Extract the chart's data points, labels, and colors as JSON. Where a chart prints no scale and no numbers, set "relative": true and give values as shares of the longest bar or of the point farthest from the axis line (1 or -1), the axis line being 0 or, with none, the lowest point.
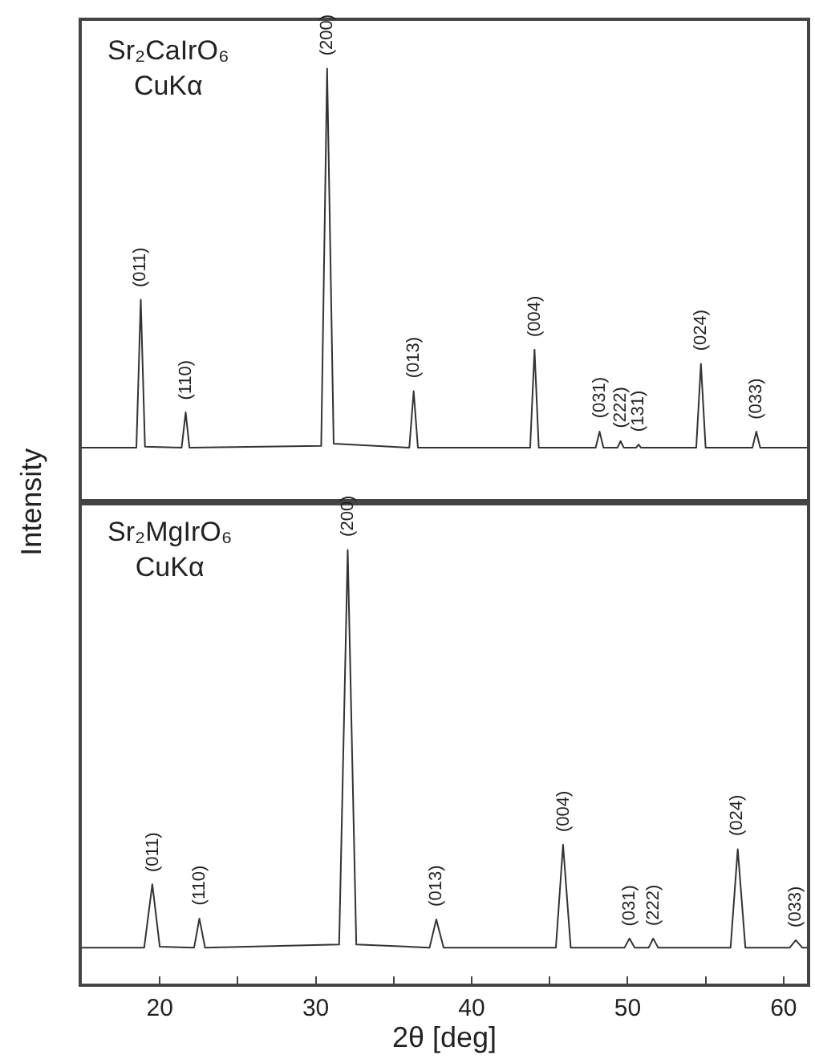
{
  "chart_data": [
    {
      "type": "line",
      "relative": true,
      "color": "#333333",
      "xlim": [
        15,
        61.5
      ],
      "tick_labels": false,
      "x": [
        15,
        18.5,
        18.78,
        19.05,
        21.4,
        21.66,
        21.9,
        30.35,
        30.73,
        31.15,
        36.0,
        36.28,
        36.55,
        43.75,
        44.03,
        44.3,
        47.95,
        48.2,
        48.45,
        49.35,
        49.55,
        49.75,
        50.55,
        50.7,
        50.85,
        54.4,
        54.7,
        55.0,
        58.0,
        58.25,
        58.5,
        61.5
      ],
      "values": [
        0.126,
        0.126,
        0.467,
        0.128,
        0.126,
        0.207,
        0.126,
        0.13,
        1,
        0.135,
        0.126,
        0.256,
        0.126,
        0.126,
        0.352,
        0.126,
        0.126,
        0.163,
        0.126,
        0.126,
        0.141,
        0.126,
        0.126,
        0.133,
        0.126,
        0.126,
        0.319,
        0.126,
        0.126,
        0.163,
        0.126,
        0.126
      ],
      "ylabel": "Intensity",
      "annotations": [
        "Sr₂CaIrO₆\nCuKα",
        {
          "text": "(011)",
          "x": 18.78,
          "y": 0.467
        },
        {
          "text": "(110)",
          "x": 21.66,
          "y": 0.207
        },
        {
          "text": "(200)",
          "x": 30.73,
          "y": 1
        },
        {
          "text": "(013)",
          "x": 36.28,
          "y": 0.256
        },
        {
          "text": "(004)",
          "x": 44.03,
          "y": 0.352
        },
        {
          "text": "(031)",
          "x": 48.2,
          "y": 0.163
        },
        {
          "text": "(222)",
          "x": 49.55,
          "y": 0.141
        },
        {
          "text": "(131)",
          "x": 50.7,
          "y": 0.133
        },
        {
          "text": "(024)",
          "x": 54.7,
          "y": 0.319
        },
        {
          "text": "(033)",
          "x": 58.25,
          "y": 0.163
        }
      ]
    },
    {
      "type": "line",
      "relative": true,
      "color": "#333333",
      "xlim": [
        15,
        61.5
      ],
      "tick_labels": "x",
      "xticks": [
        {
          "value": 15,
          "label": null
        },
        20,
        {
          "value": 25,
          "label": null
        },
        30,
        {
          "value": 35,
          "label": null
        },
        40,
        {
          "value": 45,
          "label": null
        },
        50,
        {
          "value": 55,
          "label": null
        },
        60
      ],
      "xlabel": "2θ [deg]",
      "x": [
        15,
        19.0,
        19.52,
        20.0,
        22.2,
        22.54,
        22.9,
        31.5,
        32.05,
        32.6,
        37.3,
        37.73,
        38.2,
        45.4,
        45.86,
        46.35,
        49.8,
        50.12,
        50.45,
        51.35,
        51.64,
        51.95,
        56.6,
        57.06,
        57.55,
        60.4,
        60.78,
        61.2,
        61.5
      ],
      "values": [
        0.083,
        0.083,
        0.229,
        0.085,
        0.083,
        0.15,
        0.083,
        0.09,
        1,
        0.09,
        0.083,
        0.148,
        0.083,
        0.083,
        0.32,
        0.083,
        0.083,
        0.104,
        0.083,
        0.083,
        0.104,
        0.083,
        0.083,
        0.31,
        0.083,
        0.083,
        0.1,
        0.083,
        0.083
      ],
      "annotations": [
        "Sr₂MgIrO₆\nCuKα",
        {
          "text": "(011)",
          "x": 19.52,
          "y": 0.229
        },
        {
          "text": "(110)",
          "x": 22.54,
          "y": 0.15
        },
        {
          "text": "(200)",
          "x": 32.05,
          "y": 1
        },
        {
          "text": "(013)",
          "x": 37.73,
          "y": 0.148
        },
        {
          "text": "(004)",
          "x": 45.86,
          "y": 0.32
        },
        {
          "text": "(031)",
          "x": 50.12,
          "y": 0.104
        },
        {
          "text": "(222)",
          "x": 51.64,
          "y": 0.104
        },
        {
          "text": "(024)",
          "x": 57.06,
          "y": 0.31
        },
        {
          "text": "(033)",
          "x": 60.78,
          "y": 0.1
        }
      ]
    }
  ]
}
